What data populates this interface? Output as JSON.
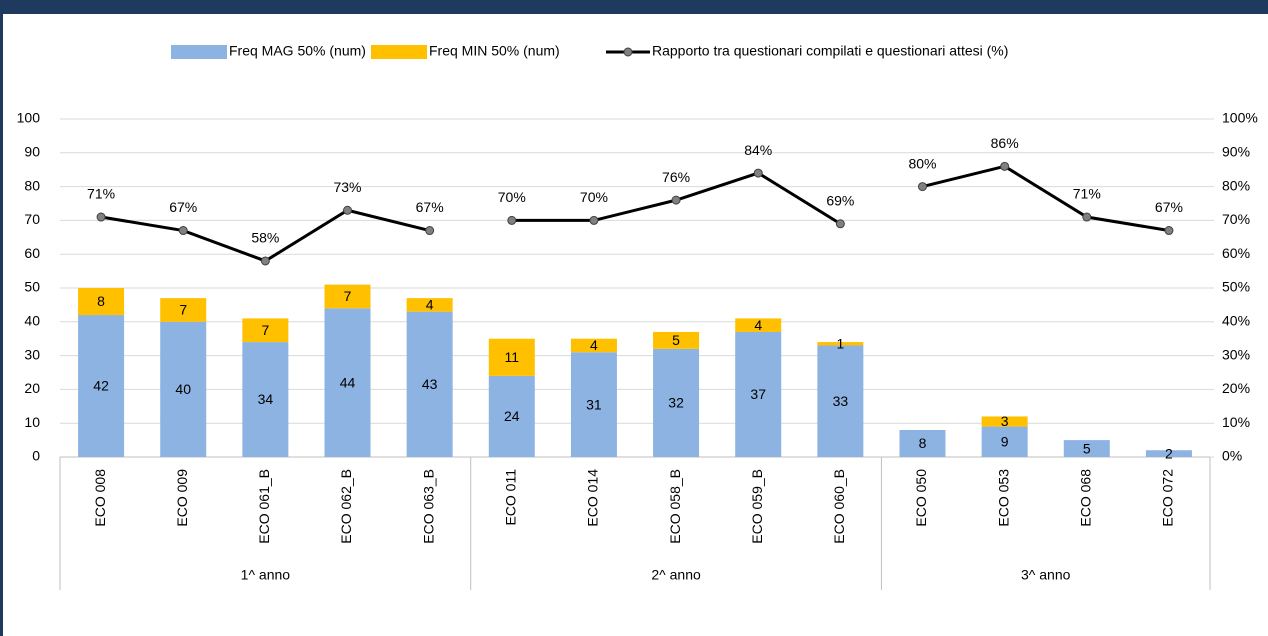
{
  "chart_data": {
    "type": "bar",
    "stacked": true,
    "grid": true,
    "legend": "top",
    "groups": [
      {
        "name": "1^ anno",
        "categories": [
          "ECO 008",
          "ECO 009",
          "ECO 061_B",
          "ECO 062_B",
          "ECO 063_B"
        ]
      },
      {
        "name": "2^ anno",
        "categories": [
          "ECO 011",
          "ECO 014",
          "ECO 058_B",
          "ECO 059_B",
          "ECO 060_B"
        ]
      },
      {
        "name": "3^ anno",
        "categories": [
          "ECO 050",
          "ECO 053",
          "ECO 068",
          "ECO 072"
        ]
      }
    ],
    "series": [
      {
        "name": "Freq MAG 50% (num)",
        "type": "bar",
        "color": "#8db3e2",
        "values": [
          42,
          40,
          34,
          44,
          43,
          24,
          31,
          32,
          37,
          33,
          8,
          9,
          5,
          2
        ]
      },
      {
        "name": "Freq MIN 50% (num)",
        "type": "bar",
        "color": "#ffc000",
        "values": [
          8,
          7,
          7,
          7,
          4,
          11,
          4,
          5,
          4,
          1,
          null,
          3,
          null,
          null
        ]
      },
      {
        "name": "Rapporto tra questionari compilati e questionari attesi (%)",
        "type": "line",
        "axis": "y2",
        "color": "#000000",
        "values": [
          71,
          67,
          58,
          73,
          67,
          70,
          70,
          76,
          84,
          69,
          80,
          86,
          71,
          67
        ],
        "value_labels": [
          "71%",
          "67%",
          "58%",
          "73%",
          "67%",
          "70%",
          "70%",
          "76%",
          "84%",
          "69%",
          "80%",
          "86%",
          "71%",
          "67%"
        ]
      }
    ],
    "ylim": [
      0,
      100
    ],
    "yticks": [
      0,
      10,
      20,
      30,
      40,
      50,
      60,
      70,
      80,
      90,
      100
    ],
    "y2lim": [
      0,
      100
    ],
    "y2ticks": [
      {
        "value": 0,
        "label": "0%"
      },
      {
        "value": 10,
        "label": "10%"
      },
      {
        "value": 20,
        "label": "20%"
      },
      {
        "value": 30,
        "label": "30%"
      },
      {
        "value": 40,
        "label": "40%"
      },
      {
        "value": 50,
        "label": "50%"
      },
      {
        "value": 60,
        "label": "60%"
      },
      {
        "value": 70,
        "label": "70%"
      },
      {
        "value": 80,
        "label": "80%"
      },
      {
        "value": 90,
        "label": "90%"
      },
      {
        "value": 100,
        "label": "100%"
      }
    ]
  }
}
